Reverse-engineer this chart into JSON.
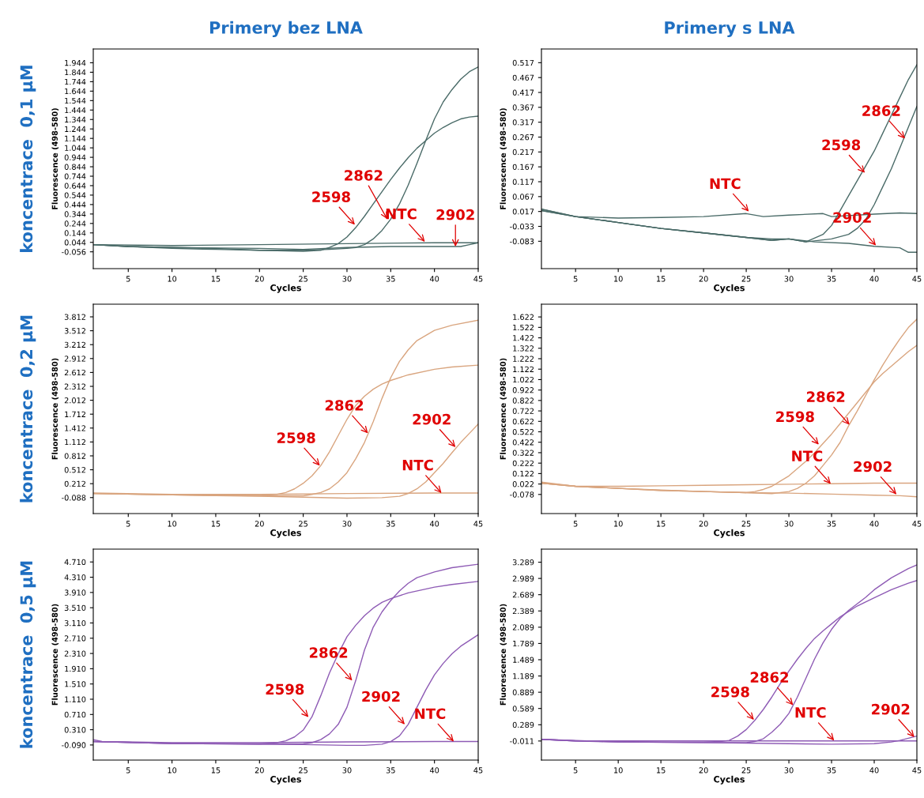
{
  "chart_data": [
    {
      "type": "line",
      "title": "Primery bez LNA",
      "xlabel": "Cycles",
      "ylabel": "Fluorescence (498-580)",
      "xlim": [
        1,
        45
      ],
      "xticks": [
        5,
        10,
        15,
        20,
        25,
        30,
        35,
        40,
        45
      ],
      "ylim": [
        -0.234,
        2.09
      ],
      "yticks": [
        1.944,
        1.844,
        1.744,
        1.644,
        1.544,
        1.444,
        1.344,
        1.244,
        1.144,
        1.044,
        0.944,
        0.844,
        0.744,
        0.644,
        0.544,
        0.444,
        0.344,
        0.244,
        0.144,
        0.044,
        -0.056
      ],
      "grid": false,
      "legend": false,
      "series": [
        {
          "color": "#4a6b68",
          "x": [
            1,
            5,
            10,
            15,
            20,
            25,
            27,
            28,
            29,
            30,
            31,
            32,
            33,
            34,
            35,
            36,
            37,
            38,
            39,
            40,
            41,
            42,
            43,
            44,
            45
          ],
          "values": [
            0.02,
            0.0,
            -0.01,
            -0.02,
            -0.04,
            -0.05,
            -0.04,
            -0.01,
            0.03,
            0.1,
            0.2,
            0.32,
            0.45,
            0.58,
            0.71,
            0.83,
            0.94,
            1.04,
            1.12,
            1.2,
            1.26,
            1.31,
            1.35,
            1.37,
            1.38
          ]
        },
        {
          "color": "#4a6b68",
          "x": [
            1,
            5,
            10,
            15,
            20,
            25,
            28,
            30,
            31,
            32,
            33,
            34,
            35,
            36,
            37,
            38,
            39,
            40,
            41,
            42,
            43,
            44,
            45
          ],
          "values": [
            0.02,
            0.0,
            -0.02,
            -0.03,
            -0.04,
            -0.04,
            -0.03,
            -0.02,
            -0.01,
            0.02,
            0.08,
            0.17,
            0.29,
            0.45,
            0.65,
            0.88,
            1.12,
            1.35,
            1.53,
            1.66,
            1.77,
            1.85,
            1.9
          ]
        },
        {
          "color": "#4a6b68",
          "x": [
            1,
            10,
            20,
            30,
            40,
            45
          ],
          "values": [
            0.02,
            0.01,
            0.02,
            0.03,
            0.04,
            0.04
          ]
        },
        {
          "color": "#4a6b68",
          "x": [
            1,
            5,
            10,
            20,
            25,
            30,
            35,
            40,
            43,
            44,
            45
          ],
          "values": [
            0.02,
            0.0,
            -0.01,
            -0.02,
            -0.03,
            -0.01,
            0.0,
            0.0,
            0.0,
            0.02,
            0.04
          ]
        }
      ],
      "annotations": [
        "koncentrace  0,1 µM",
        {
          "text": "2598",
          "x": 30.9,
          "y": 0.23
        },
        {
          "text": "2862",
          "x": 34.6,
          "y": 0.29
        },
        {
          "text": "NTC",
          "x": 38.9,
          "y": 0.05
        },
        {
          "text": "2902",
          "x": 42.4,
          "y": 0.0
        }
      ]
    },
    {
      "type": "line",
      "title": "Primery s LNA",
      "xlabel": "Cycles",
      "ylabel": "Fluorescence (498-580)",
      "xlim": [
        1,
        45
      ],
      "xticks": [
        5,
        10,
        15,
        20,
        25,
        30,
        35,
        40,
        45
      ],
      "ylim": [
        -0.175,
        0.563
      ],
      "yticks": [
        0.517,
        0.467,
        0.417,
        0.367,
        0.317,
        0.267,
        0.217,
        0.167,
        0.117,
        0.067,
        0.017,
        -0.033,
        -0.083
      ],
      "grid": false,
      "legend": false,
      "series": [
        {
          "color": "#4a6b68",
          "x": [
            1,
            5,
            10,
            15,
            20,
            25,
            28,
            30,
            32,
            34,
            35,
            36,
            37,
            38,
            39,
            40,
            41,
            42,
            43,
            44,
            45
          ],
          "values": [
            0.025,
            0.0,
            -0.02,
            -0.04,
            -0.055,
            -0.07,
            -0.08,
            -0.075,
            -0.085,
            -0.06,
            -0.03,
            0.02,
            0.07,
            0.12,
            0.17,
            0.22,
            0.28,
            0.34,
            0.4,
            0.46,
            0.51
          ]
        },
        {
          "color": "#4a6b68",
          "x": [
            1,
            5,
            10,
            15,
            20,
            25,
            28,
            30,
            32,
            35,
            37,
            38,
            39,
            40,
            41,
            42,
            43,
            44,
            45
          ],
          "values": [
            0.025,
            0.0,
            -0.02,
            -0.04,
            -0.055,
            -0.07,
            -0.08,
            -0.075,
            -0.085,
            -0.075,
            -0.06,
            -0.04,
            -0.01,
            0.04,
            0.1,
            0.16,
            0.23,
            0.3,
            0.37
          ]
        },
        {
          "color": "#4a6b68",
          "x": [
            1,
            5,
            10,
            15,
            20,
            25,
            27,
            30,
            34,
            35,
            40,
            43,
            45
          ],
          "values": [
            0.02,
            0.0,
            -0.005,
            -0.003,
            0.0,
            0.01,
            0.0,
            0.005,
            0.01,
            0.0,
            0.008,
            0.012,
            0.01
          ]
        },
        {
          "color": "#4a6b68",
          "x": [
            1,
            5,
            10,
            15,
            20,
            25,
            28,
            30,
            33,
            37,
            40,
            43,
            44,
            45
          ],
          "values": [
            0.02,
            0.0,
            -0.02,
            -0.04,
            -0.055,
            -0.07,
            -0.075,
            -0.075,
            -0.085,
            -0.09,
            -0.1,
            -0.105,
            -0.12,
            -0.12
          ]
        }
      ],
      "annotations": [
        {
          "text": "2598",
          "x": 38.9,
          "y": 0.147
        },
        {
          "text": "2862",
          "x": 43.6,
          "y": 0.262
        },
        {
          "text": "NTC",
          "x": 25.3,
          "y": 0.017
        },
        {
          "text": "2902",
          "x": 40.2,
          "y": -0.097
        }
      ]
    },
    {
      "type": "line",
      "xlabel": "Cycles",
      "ylabel": "Fluorescence (498-580)",
      "xlim": [
        1,
        45
      ],
      "xticks": [
        5,
        10,
        15,
        20,
        25,
        30,
        35,
        40,
        45
      ],
      "ylim": [
        -0.433,
        4.085
      ],
      "yticks": [
        3.812,
        3.512,
        3.212,
        2.912,
        2.612,
        2.312,
        2.012,
        1.712,
        1.412,
        1.112,
        0.812,
        0.512,
        0.212,
        -0.088
      ],
      "grid": false,
      "legend": false,
      "series": [
        {
          "color": "#d9a57f",
          "x": [
            1,
            10,
            20,
            22,
            23,
            24,
            25,
            26,
            27,
            28,
            29,
            30,
            31,
            32,
            33,
            34,
            35,
            37,
            40,
            42,
            45
          ],
          "values": [
            0.0,
            -0.03,
            -0.04,
            -0.02,
            0.02,
            0.1,
            0.22,
            0.38,
            0.6,
            0.9,
            1.25,
            1.6,
            1.9,
            2.1,
            2.25,
            2.36,
            2.44,
            2.56,
            2.68,
            2.73,
            2.77
          ]
        },
        {
          "color": "#d9a57f",
          "x": [
            1,
            10,
            20,
            25,
            26,
            27,
            28,
            29,
            30,
            31,
            32,
            33,
            34,
            35,
            36,
            37,
            38,
            40,
            42,
            45
          ],
          "values": [
            0.0,
            -0.03,
            -0.05,
            -0.05,
            -0.02,
            0.02,
            0.1,
            0.25,
            0.45,
            0.75,
            1.1,
            1.55,
            2.05,
            2.5,
            2.85,
            3.1,
            3.3,
            3.52,
            3.63,
            3.74
          ]
        },
        {
          "color": "#d9a57f",
          "x": [
            1,
            10,
            20,
            30,
            40,
            45
          ],
          "values": [
            0.01,
            -0.02,
            -0.02,
            0.0,
            0.01,
            0.01
          ]
        },
        {
          "color": "#d9a57f",
          "x": [
            1,
            10,
            20,
            25,
            30,
            34,
            36,
            37,
            38,
            39,
            40,
            41,
            42,
            43,
            44,
            45
          ],
          "values": [
            0.0,
            -0.03,
            -0.06,
            -0.08,
            -0.1,
            -0.09,
            -0.06,
            0.0,
            0.1,
            0.25,
            0.45,
            0.65,
            0.88,
            1.1,
            1.3,
            1.5
          ]
        }
      ],
      "annotations": [
        "koncentrace  0,2 µM",
        {
          "text": "2598",
          "x": 26.9,
          "y": 0.6
        },
        {
          "text": "2862",
          "x": 32.4,
          "y": 1.3
        },
        {
          "text": "NTC",
          "x": 40.8,
          "y": 0.01
        },
        {
          "text": "2902",
          "x": 42.4,
          "y": 1.0
        }
      ]
    },
    {
      "type": "line",
      "xlabel": "Cycles",
      "ylabel": "Fluorescence (498-580)",
      "xlim": [
        1,
        45
      ],
      "xticks": [
        5,
        10,
        15,
        20,
        25,
        30,
        35,
        40,
        45
      ],
      "ylim": [
        -0.261,
        1.744
      ],
      "yticks": [
        1.622,
        1.522,
        1.422,
        1.322,
        1.222,
        1.122,
        1.022,
        0.922,
        0.822,
        0.722,
        0.622,
        0.522,
        0.422,
        0.322,
        0.222,
        0.122,
        0.022,
        -0.078
      ],
      "grid": false,
      "legend": false,
      "series": [
        {
          "color": "#d9a57f",
          "x": [
            1,
            5,
            10,
            15,
            20,
            25,
            26,
            27,
            28,
            29,
            30,
            31,
            32,
            33,
            34,
            35,
            36,
            37,
            38,
            39,
            40,
            41,
            42,
            43,
            44,
            45
          ],
          "values": [
            0.03,
            0.0,
            -0.02,
            -0.04,
            -0.05,
            -0.06,
            -0.05,
            -0.03,
            0.0,
            0.05,
            0.1,
            0.17,
            0.24,
            0.32,
            0.41,
            0.5,
            0.6,
            0.7,
            0.8,
            0.9,
            1.0,
            1.08,
            1.15,
            1.22,
            1.29,
            1.35
          ]
        },
        {
          "color": "#d9a57f",
          "x": [
            1,
            5,
            10,
            15,
            20,
            25,
            28,
            30,
            31,
            32,
            33,
            34,
            35,
            36,
            37,
            38,
            39,
            40,
            41,
            42,
            43,
            44,
            45
          ],
          "values": [
            0.03,
            0.0,
            -0.02,
            -0.04,
            -0.05,
            -0.06,
            -0.07,
            -0.05,
            -0.02,
            0.03,
            0.1,
            0.2,
            0.3,
            0.42,
            0.58,
            0.72,
            0.87,
            1.02,
            1.16,
            1.29,
            1.41,
            1.52,
            1.6
          ]
        },
        {
          "color": "#d9a57f",
          "x": [
            1,
            5,
            10,
            15,
            20,
            25,
            30,
            35,
            40,
            45
          ],
          "values": [
            0.04,
            0.0,
            0.0,
            0.005,
            0.01,
            0.015,
            0.02,
            0.025,
            0.03,
            0.03
          ]
        },
        {
          "color": "#d9a57f",
          "x": [
            1,
            5,
            10,
            15,
            20,
            25,
            30,
            35,
            40,
            43,
            45
          ],
          "values": [
            0.03,
            0.0,
            -0.02,
            -0.035,
            -0.05,
            -0.06,
            -0.065,
            -0.075,
            -0.085,
            -0.09,
            -0.1
          ]
        }
      ],
      "annotations": [
        {
          "text": "2598",
          "x": 33.5,
          "y": 0.4
        },
        {
          "text": "2862",
          "x": 37.1,
          "y": 0.59
        },
        {
          "text": "NTC",
          "x": 34.9,
          "y": 0.023
        },
        {
          "text": "2902",
          "x": 42.6,
          "y": -0.078
        }
      ]
    },
    {
      "type": "line",
      "xlabel": "Cycles",
      "ylabel": "Fluorescence (498-580)",
      "xlim": [
        1,
        45
      ],
      "xticks": [
        5,
        10,
        15,
        20,
        25,
        30,
        35,
        40,
        45
      ],
      "ylim": [
        -0.486,
        5.047
      ],
      "yticks": [
        {
          "value": 4.71,
          "label": "4.710"
        },
        {
          "value": 4.31,
          "label": "4.310"
        },
        {
          "value": 3.91,
          "label": "3.910"
        },
        {
          "value": 3.51,
          "label": "3.510"
        },
        {
          "value": 3.11,
          "label": "3.110"
        },
        {
          "value": 2.71,
          "label": "2.710"
        },
        {
          "value": 2.31,
          "label": "2.310"
        },
        {
          "value": 1.91,
          "label": "1.910"
        },
        {
          "value": 1.51,
          "label": "1.510"
        },
        {
          "value": 1.11,
          "label": "1.110"
        },
        {
          "value": 0.71,
          "label": "0.710"
        },
        {
          "value": 0.31,
          "label": "0.310"
        },
        {
          "value": -0.09,
          "label": "-0.090"
        }
      ],
      "grid": false,
      "legend": false,
      "series": [
        {
          "color": "#8e5bb5",
          "x": [
            1,
            10,
            20,
            22,
            23,
            24,
            25,
            26,
            27,
            28,
            29,
            30,
            31,
            32,
            33,
            34,
            35,
            37,
            40,
            42,
            45
          ],
          "values": [
            0.0,
            -0.05,
            -0.06,
            -0.03,
            0.02,
            0.12,
            0.3,
            0.65,
            1.2,
            1.8,
            2.3,
            2.75,
            3.05,
            3.3,
            3.5,
            3.65,
            3.75,
            3.9,
            4.05,
            4.12,
            4.2
          ]
        },
        {
          "color": "#8e5bb5",
          "x": [
            1,
            10,
            20,
            25,
            26,
            27,
            28,
            29,
            30,
            31,
            32,
            33,
            34,
            35,
            36,
            37,
            38,
            40,
            42,
            45
          ],
          "values": [
            0.0,
            -0.05,
            -0.07,
            -0.06,
            -0.03,
            0.05,
            0.2,
            0.45,
            0.9,
            1.6,
            2.4,
            3.0,
            3.4,
            3.7,
            3.95,
            4.15,
            4.3,
            4.45,
            4.56,
            4.65
          ]
        },
        {
          "color": "#8e5bb5",
          "x": [
            1,
            2,
            10,
            20,
            30,
            40,
            45
          ],
          "values": [
            0.05,
            0.0,
            -0.03,
            -0.03,
            -0.01,
            0.0,
            0.0
          ]
        },
        {
          "color": "#8e5bb5",
          "x": [
            1,
            10,
            20,
            25,
            30,
            32,
            34,
            35,
            36,
            37,
            38,
            39,
            40,
            41,
            42,
            43,
            44,
            45
          ],
          "values": [
            0.0,
            -0.05,
            -0.07,
            -0.08,
            -0.1,
            -0.1,
            -0.07,
            0.0,
            0.15,
            0.45,
            0.9,
            1.35,
            1.75,
            2.05,
            2.3,
            2.5,
            2.65,
            2.8
          ]
        }
      ],
      "annotations": [
        "koncentrace  0,5 µM",
        {
          "text": "2598",
          "x": 25.6,
          "y": 0.64
        },
        {
          "text": "2862",
          "x": 30.6,
          "y": 1.6
        },
        {
          "text": "NTC",
          "x": 42.2,
          "y": 0.0
        },
        {
          "text": "2902",
          "x": 36.6,
          "y": 0.45
        }
      ]
    },
    {
      "type": "line",
      "xlabel": "Cycles",
      "ylabel": "Fluorescence (498-580)",
      "xlim": [
        1,
        45
      ],
      "xticks": [
        5,
        10,
        15,
        20,
        25,
        30,
        35,
        40,
        45
      ],
      "ylim": [
        -0.363,
        3.53
      ],
      "yticks": [
        3.289,
        2.989,
        2.689,
        2.389,
        2.089,
        1.789,
        1.489,
        1.189,
        0.889,
        0.589,
        0.289,
        -0.011
      ],
      "grid": false,
      "legend": false,
      "series": [
        {
          "color": "#8e5bb5",
          "x": [
            1,
            5,
            10,
            15,
            20,
            22,
            23,
            24,
            25,
            26,
            27,
            28,
            29,
            30,
            31,
            32,
            33,
            34,
            35,
            36,
            37,
            38,
            40,
            42,
            44,
            45
          ],
          "values": [
            0.02,
            -0.01,
            -0.02,
            -0.03,
            -0.03,
            -0.02,
            0.0,
            0.08,
            0.2,
            0.37,
            0.57,
            0.8,
            1.05,
            1.28,
            1.5,
            1.7,
            1.88,
            2.02,
            2.15,
            2.28,
            2.38,
            2.48,
            2.63,
            2.78,
            2.9,
            2.95
          ]
        },
        {
          "color": "#8e5bb5",
          "x": [
            1,
            10,
            20,
            25,
            26,
            27,
            28,
            29,
            30,
            31,
            32,
            33,
            34,
            35,
            36,
            37,
            38,
            39,
            40,
            42,
            44,
            45
          ],
          "values": [
            0.02,
            -0.03,
            -0.04,
            -0.04,
            -0.02,
            0.03,
            0.15,
            0.3,
            0.5,
            0.8,
            1.15,
            1.5,
            1.8,
            2.05,
            2.25,
            2.4,
            2.52,
            2.64,
            2.78,
            3.0,
            3.17,
            3.24
          ]
        },
        {
          "color": "#8e5bb5",
          "x": [
            1,
            5,
            10,
            20,
            30,
            40,
            45
          ],
          "values": [
            0.02,
            -0.01,
            -0.01,
            -0.01,
            -0.01,
            -0.01,
            -0.01
          ]
        },
        {
          "color": "#8e5bb5",
          "x": [
            1,
            5,
            10,
            20,
            30,
            35,
            40,
            42,
            43,
            44,
            45
          ],
          "values": [
            0.02,
            -0.01,
            -0.03,
            -0.04,
            -0.06,
            -0.07,
            -0.06,
            -0.03,
            0.0,
            0.04,
            0.08
          ]
        }
      ],
      "annotations": [
        {
          "text": "2598",
          "x": 25.9,
          "y": 0.38
        },
        {
          "text": "2862",
          "x": 30.5,
          "y": 0.65
        },
        {
          "text": "NTC",
          "x": 35.3,
          "y": 0.0
        },
        {
          "text": "2902",
          "x": 44.7,
          "y": 0.06
        }
      ]
    }
  ]
}
